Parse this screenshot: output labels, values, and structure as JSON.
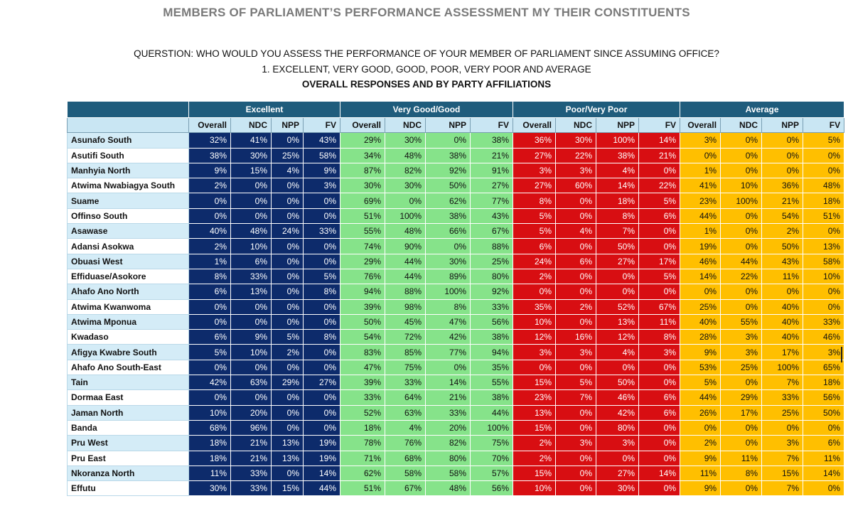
{
  "title": "MEMBERS OF PARLIAMENT’S PERFORMANCE ASSESSMENT MY THEIR CONSTITUENTS",
  "question": "QUERSTION: WHO WOULD YOU ASSESS THE PERFORMANCE OF YOUR MEMBER OF PARLIAMENT SINCE ASSUMING OFFICE?",
  "options": "1.    EXCELLENT, VERY GOOD, GOOD, POOR, VERY POOR AND AVERAGE",
  "subtitle": "OVERALL RESPONSES AND BY PARTY AFFILIATIONS",
  "groups": [
    "Excellent",
    "Very Good/Good",
    "Poor/Very Poor",
    "Average"
  ],
  "columns": [
    "Overall",
    "NDC",
    "NPP",
    "FV"
  ],
  "colors": {
    "excellent": "#0d2b6b",
    "very_good": "#86e38a",
    "poor": "#d80e12",
    "average": "#ffbf00",
    "header": "#1f5c7c"
  },
  "rows": [
    {
      "name": "Asunafo South",
      "v": [
        "32%",
        "41%",
        "0%",
        "43%",
        "29%",
        "30%",
        "0%",
        "38%",
        "36%",
        "30%",
        "100%",
        "14%",
        "3%",
        "0%",
        "0%",
        "5%"
      ]
    },
    {
      "name": "Asutifi South",
      "v": [
        "38%",
        "30%",
        "25%",
        "58%",
        "34%",
        "48%",
        "38%",
        "21%",
        "27%",
        "22%",
        "38%",
        "21%",
        "0%",
        "0%",
        "0%",
        "0%"
      ]
    },
    {
      "name": "Manhyia North",
      "v": [
        "9%",
        "15%",
        "4%",
        "9%",
        "87%",
        "82%",
        "92%",
        "91%",
        "3%",
        "3%",
        "4%",
        "0%",
        "1%",
        "0%",
        "0%",
        "0%"
      ]
    },
    {
      "name": "Atwima Nwabiagya South",
      "v": [
        "2%",
        "0%",
        "0%",
        "3%",
        "30%",
        "30%",
        "50%",
        "27%",
        "27%",
        "60%",
        "14%",
        "22%",
        "41%",
        "10%",
        "36%",
        "48%"
      ]
    },
    {
      "name": "Suame",
      "v": [
        "0%",
        "0%",
        "0%",
        "0%",
        "69%",
        "0%",
        "62%",
        "77%",
        "8%",
        "0%",
        "18%",
        "5%",
        "23%",
        "100%",
        "21%",
        "18%"
      ]
    },
    {
      "name": "Offinso South",
      "v": [
        "0%",
        "0%",
        "0%",
        "0%",
        "51%",
        "100%",
        "38%",
        "43%",
        "5%",
        "0%",
        "8%",
        "6%",
        "44%",
        "0%",
        "54%",
        "51%"
      ]
    },
    {
      "name": "Asawase",
      "v": [
        "40%",
        "48%",
        "24%",
        "33%",
        "55%",
        "48%",
        "66%",
        "67%",
        "5%",
        "4%",
        "7%",
        "0%",
        "1%",
        "0%",
        "2%",
        "0%"
      ]
    },
    {
      "name": "Adansi Asokwa",
      "v": [
        "2%",
        "10%",
        "0%",
        "0%",
        "74%",
        "90%",
        "0%",
        "88%",
        "6%",
        "0%",
        "50%",
        "0%",
        "19%",
        "0%",
        "50%",
        "13%"
      ]
    },
    {
      "name": "Obuasi West",
      "v": [
        "1%",
        "6%",
        "0%",
        "0%",
        "29%",
        "44%",
        "30%",
        "25%",
        "24%",
        "6%",
        "27%",
        "17%",
        "46%",
        "44%",
        "43%",
        "58%"
      ]
    },
    {
      "name": "Effiduase/Asokore",
      "v": [
        "8%",
        "33%",
        "0%",
        "5%",
        "76%",
        "44%",
        "89%",
        "80%",
        "2%",
        "0%",
        "0%",
        "5%",
        "14%",
        "22%",
        "11%",
        "10%"
      ]
    },
    {
      "name": "Ahafo Ano North",
      "v": [
        "6%",
        "13%",
        "0%",
        "8%",
        "94%",
        "88%",
        "100%",
        "92%",
        "0%",
        "0%",
        "0%",
        "0%",
        "0%",
        "0%",
        "0%",
        "0%"
      ]
    },
    {
      "name": "Atwima Kwanwoma",
      "v": [
        "0%",
        "0%",
        "0%",
        "0%",
        "39%",
        "98%",
        "8%",
        "33%",
        "35%",
        "2%",
        "52%",
        "67%",
        "25%",
        "0%",
        "40%",
        "0%"
      ]
    },
    {
      "name": "Atwima Mponua",
      "v": [
        "0%",
        "0%",
        "0%",
        "0%",
        "50%",
        "45%",
        "47%",
        "56%",
        "10%",
        "0%",
        "13%",
        "11%",
        "40%",
        "55%",
        "40%",
        "33%"
      ]
    },
    {
      "name": "Kwadaso",
      "v": [
        "6%",
        "9%",
        "5%",
        "8%",
        "54%",
        "72%",
        "42%",
        "38%",
        "12%",
        "16%",
        "12%",
        "8%",
        "28%",
        "3%",
        "40%",
        "46%"
      ]
    },
    {
      "name": "Afigya Kwabre South",
      "v": [
        "5%",
        "10%",
        "2%",
        "0%",
        "83%",
        "85%",
        "77%",
        "94%",
        "3%",
        "3%",
        "4%",
        "3%",
        "9%",
        "3%",
        "17%",
        "3%"
      ]
    },
    {
      "name": "Ahafo Ano South-East",
      "v": [
        "0%",
        "0%",
        "0%",
        "0%",
        "47%",
        "75%",
        "0%",
        "35%",
        "0%",
        "0%",
        "0%",
        "0%",
        "53%",
        "25%",
        "100%",
        "65%"
      ]
    },
    {
      "name": "Tain",
      "v": [
        "42%",
        "63%",
        "29%",
        "27%",
        "39%",
        "33%",
        "14%",
        "55%",
        "15%",
        "5%",
        "50%",
        "0%",
        "5%",
        "0%",
        "7%",
        "18%"
      ]
    },
    {
      "name": "Dormaa East",
      "v": [
        "0%",
        "0%",
        "0%",
        "0%",
        "33%",
        "64%",
        "21%",
        "38%",
        "23%",
        "7%",
        "46%",
        "6%",
        "44%",
        "29%",
        "33%",
        "56%"
      ]
    },
    {
      "name": "Jaman North",
      "v": [
        "10%",
        "20%",
        "0%",
        "0%",
        "52%",
        "63%",
        "33%",
        "44%",
        "13%",
        "0%",
        "42%",
        "6%",
        "26%",
        "17%",
        "25%",
        "50%"
      ]
    },
    {
      "name": "Banda",
      "v": [
        "68%",
        "96%",
        "0%",
        "0%",
        "18%",
        "4%",
        "20%",
        "100%",
        "15%",
        "0%",
        "80%",
        "0%",
        "0%",
        "0%",
        "0%",
        "0%"
      ]
    },
    {
      "name": "Pru West",
      "v": [
        "18%",
        "21%",
        "13%",
        "19%",
        "78%",
        "76%",
        "82%",
        "75%",
        "2%",
        "3%",
        "3%",
        "0%",
        "2%",
        "0%",
        "3%",
        "6%"
      ]
    },
    {
      "name": "Pru East",
      "v": [
        "18%",
        "21%",
        "13%",
        "19%",
        "71%",
        "68%",
        "80%",
        "70%",
        "2%",
        "0%",
        "0%",
        "0%",
        "9%",
        "11%",
        "7%",
        "11%"
      ]
    },
    {
      "name": "Nkoranza North",
      "v": [
        "11%",
        "33%",
        "0%",
        "14%",
        "62%",
        "58%",
        "58%",
        "57%",
        "15%",
        "0%",
        "27%",
        "14%",
        "11%",
        "8%",
        "15%",
        "14%"
      ]
    },
    {
      "name": "Effutu",
      "v": [
        "30%",
        "33%",
        "15%",
        "44%",
        "51%",
        "67%",
        "48%",
        "56%",
        "10%",
        "0%",
        "30%",
        "0%",
        "9%",
        "0%",
        "7%",
        "0%"
      ]
    }
  ]
}
